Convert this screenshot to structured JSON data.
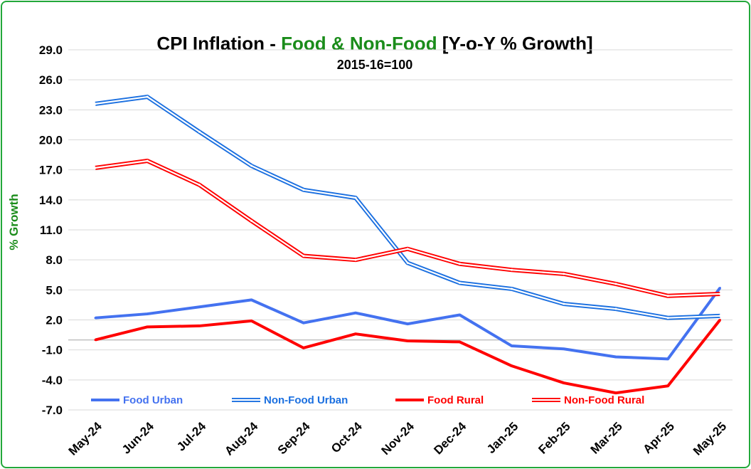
{
  "chart_data": {
    "type": "line",
    "title_parts": [
      {
        "text": "CPI Inflation - ",
        "color": "#000000"
      },
      {
        "text": "Food & Non-Food",
        "color": "#1a8c1a"
      },
      {
        "text": " [Y-o-Y % Growth]",
        "color": "#000000"
      }
    ],
    "subtitle": "2015-16=100",
    "ylabel": "% Growth",
    "ylabel_color": "#1a8c1a",
    "ylim": [
      -7,
      29
    ],
    "yticks": [
      "29.0",
      "26.0",
      "23.0",
      "20.0",
      "17.0",
      "14.0",
      "11.0",
      "8.0",
      "5.0",
      "2.0",
      "-1.0",
      "-4.0",
      "-7.0"
    ],
    "categories": [
      "May-24",
      "Jun-24",
      "Jul-24",
      "Aug-24",
      "Sep-24",
      "Oct-24",
      "Nov-24",
      "Dec-24",
      "Jan-25",
      "Feb-25",
      "Mar-25",
      "Apr-25",
      "May-25"
    ],
    "legend_position": "bottom",
    "series": [
      {
        "name": "Food Urban",
        "style": "solid",
        "color": "#4472f0",
        "values": [
          2.2,
          2.6,
          3.3,
          4.0,
          1.7,
          2.7,
          1.6,
          2.5,
          -0.6,
          -0.9,
          -1.7,
          -1.9,
          5.2
        ]
      },
      {
        "name": "Non-Food Urban",
        "style": "double",
        "color": "#1a6fe0",
        "values": [
          23.6,
          24.3,
          20.8,
          17.4,
          15.0,
          14.2,
          7.7,
          5.7,
          5.1,
          3.6,
          3.1,
          2.2,
          2.4
        ]
      },
      {
        "name": "Food Rural",
        "style": "solid",
        "color": "#ff0000",
        "values": [
          0.0,
          1.3,
          1.4,
          1.9,
          -0.8,
          0.6,
          -0.1,
          -0.2,
          -2.6,
          -4.3,
          -5.3,
          -4.6,
          2.0
        ]
      },
      {
        "name": "Non-Food Rural",
        "style": "double",
        "color": "#ff0000",
        "values": [
          17.2,
          17.9,
          15.5,
          11.9,
          8.4,
          8.0,
          9.1,
          7.6,
          7.0,
          6.6,
          5.6,
          4.4,
          4.6
        ]
      }
    ]
  }
}
